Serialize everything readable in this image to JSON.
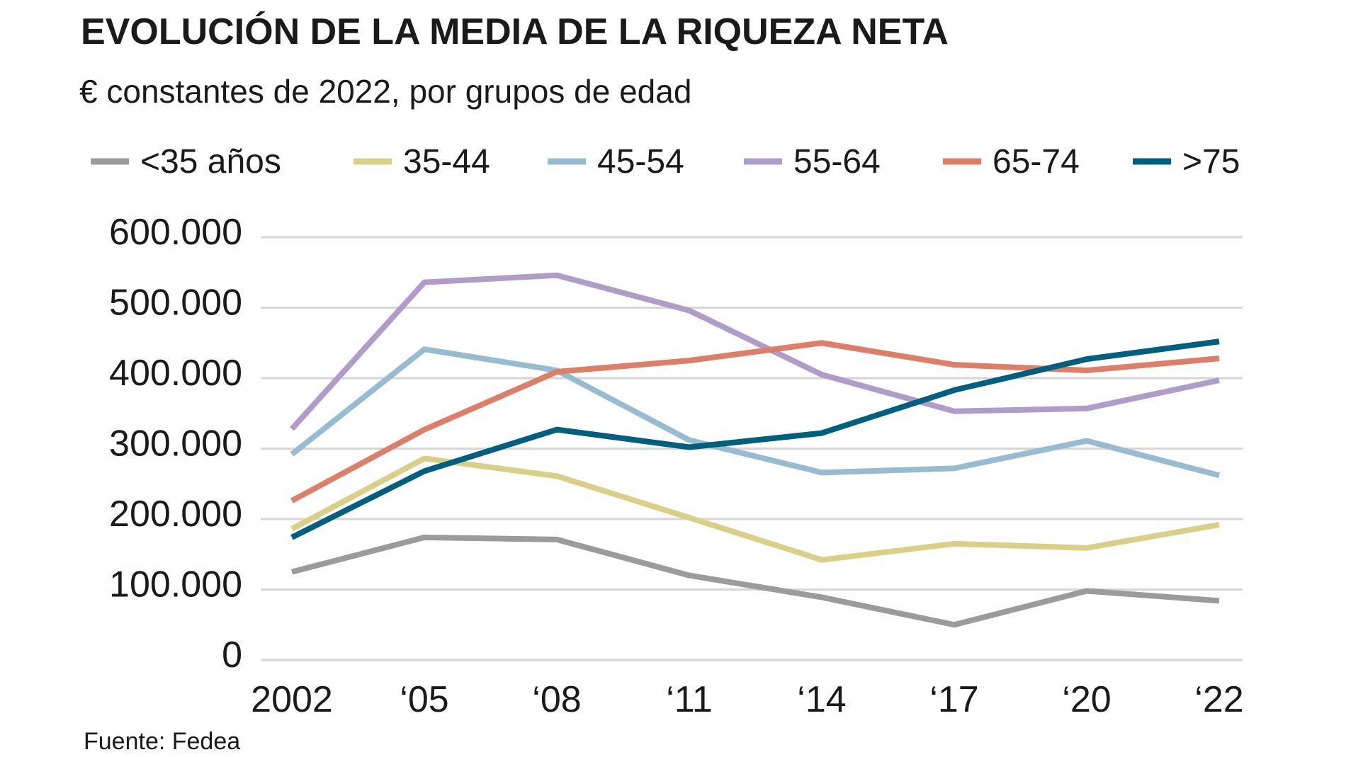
{
  "chart_data": {
    "type": "line",
    "title": "EVOLUCIÓN DE LA MEDIA DE LA RIQUEZA NETA",
    "subtitle": "€ constantes de 2022, por grupos de edad",
    "source": "Fuente: Fedea",
    "xlabel": "",
    "ylabel": "",
    "categories": [
      "2002",
      "‘05",
      "‘08",
      "‘11",
      "‘14",
      "‘17",
      "‘20",
      "‘22"
    ],
    "ylim": [
      0,
      600000
    ],
    "yticks": [
      0,
      100000,
      200000,
      300000,
      400000,
      500000,
      600000
    ],
    "ytick_labels": [
      "0",
      "100.000",
      "200.000",
      "300.000",
      "400.000",
      "500.000",
      "600.000"
    ],
    "grid": "horizontal",
    "legend": "top",
    "series": [
      {
        "name": "<35 años",
        "color": "#9b9b9b",
        "values": [
          125000,
          174000,
          171000,
          120000,
          89000,
          50000,
          98000,
          84000
        ]
      },
      {
        "name": "35-44",
        "color": "#d9cf87",
        "values": [
          186000,
          286000,
          261000,
          202000,
          142000,
          165000,
          159000,
          192000
        ]
      },
      {
        "name": "45-54",
        "color": "#97bcd1",
        "values": [
          292000,
          441000,
          411000,
          312000,
          266000,
          272000,
          311000,
          262000
        ]
      },
      {
        "name": "55-64",
        "color": "#b09cc8",
        "values": [
          328000,
          536000,
          546000,
          496000,
          405000,
          353000,
          357000,
          397000
        ]
      },
      {
        "name": "65-74",
        "color": "#dd7f68",
        "values": [
          226000,
          327000,
          409000,
          425000,
          450000,
          419000,
          411000,
          428000
        ]
      },
      {
        "name": ">75",
        "color": "#005f7f",
        "values": [
          174000,
          268000,
          327000,
          302000,
          322000,
          383000,
          427000,
          452000
        ]
      }
    ]
  }
}
